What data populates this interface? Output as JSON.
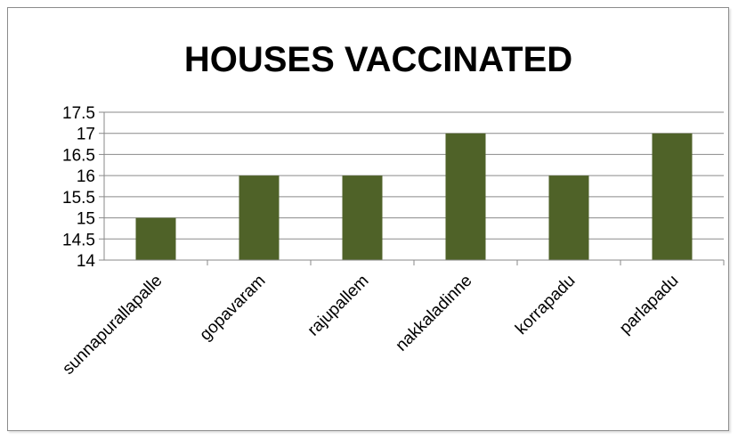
{
  "chart_data": {
    "type": "bar",
    "title": "HOUSES VACCINATED",
    "categories": [
      "sunnapurallapalle",
      "gopavaram",
      "rajupallem",
      "nakkaladinne",
      "korrapadu",
      "parlapadu"
    ],
    "values": [
      15,
      16,
      16,
      17,
      16,
      17
    ],
    "ylim": [
      14,
      17.5
    ],
    "yticks": [
      "14",
      "14.5",
      "15",
      "15.5",
      "16",
      "16.5",
      "17",
      "17.5"
    ],
    "grid": true,
    "legend": "none",
    "bar_color": "#4f6228"
  }
}
